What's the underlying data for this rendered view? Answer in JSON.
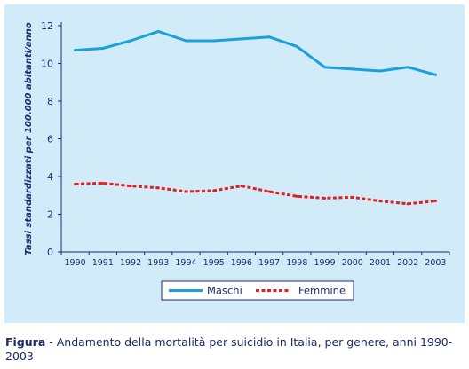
{
  "chart_data": {
    "type": "line",
    "title": "",
    "xlabel": "",
    "ylabel": "Tassi standardizzati per 100.000 abitanti/anno",
    "x": [
      "1990",
      "1991",
      "1992",
      "1993",
      "1994",
      "1995",
      "1996",
      "1997",
      "1998",
      "1999",
      "2000",
      "2001",
      "2002",
      "2003"
    ],
    "ylim": [
      0,
      12
    ],
    "yticks": [
      0,
      2,
      4,
      6,
      8,
      10,
      12
    ],
    "grid": false,
    "legend_position": "bottom-center",
    "series": [
      {
        "name": "Maschi",
        "color": "#1aa0dc",
        "style": "solid",
        "values": [
          10.7,
          10.8,
          11.2,
          11.7,
          11.2,
          11.2,
          11.3,
          11.4,
          10.9,
          9.8,
          9.7,
          9.6,
          9.8,
          9.4
        ]
      },
      {
        "name": "Femmine",
        "color": "#e02020",
        "style": "dashed",
        "values": [
          3.6,
          3.65,
          3.5,
          3.4,
          3.2,
          3.25,
          3.5,
          3.2,
          2.95,
          2.85,
          2.9,
          2.7,
          2.55,
          2.7
        ]
      }
    ]
  },
  "caption": {
    "label": "Figura",
    "text": " - Andamento della mortalità per suicidio in Italia, per genere, anni 1990-2003"
  }
}
